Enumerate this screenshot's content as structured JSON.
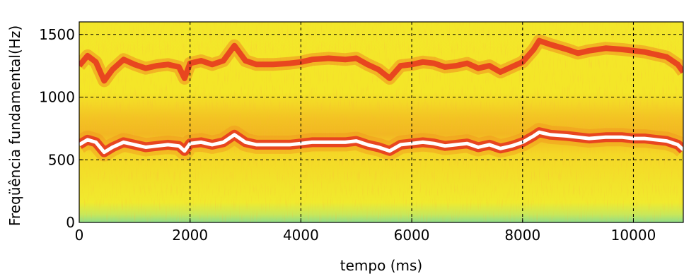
{
  "chart_data": {
    "type": "heatmap",
    "title": "",
    "xlabel": "tempo (ms)",
    "ylabel": "Freqüência fundamental(Hz)",
    "xlim": [
      0,
      10900
    ],
    "ylim": [
      0,
      1600
    ],
    "x_ticks": [
      0,
      2000,
      4000,
      6000,
      8000,
      10000
    ],
    "y_ticks": [
      0,
      500,
      1000,
      1500
    ],
    "x_tick_labels": [
      "0",
      "2000",
      "4000",
      "6000",
      "8000",
      "10000"
    ],
    "y_tick_labels": [
      "0",
      "500",
      "1000",
      "1500"
    ],
    "grid": true,
    "grid_style": "dashed",
    "colors": {
      "background": "#f2ea2a",
      "low_band": "#9ee07a",
      "harmonic": "#e8461f",
      "f0_track": "#ffffff",
      "grid": "#000000"
    },
    "series": [
      {
        "x": [
          0,
          150,
          300,
          450,
          600,
          800,
          1000,
          1200,
          1400,
          1600,
          1800,
          1900,
          2000,
          2200,
          2400,
          2600,
          2800,
          3000,
          3200,
          3500,
          3800,
          4000,
          4200,
          4500,
          4800,
          5000,
          5200,
          5400,
          5600,
          5800,
          6000,
          6200,
          6400,
          6600,
          6800,
          7000,
          7200,
          7400,
          7600,
          7800,
          8000,
          8200,
          8300,
          8500,
          8800,
          9000,
          9200,
          9500,
          9800,
          10000,
          10200,
          10400,
          10600,
          10800,
          10900
        ],
        "values": [
          620,
          660,
          640,
          560,
          600,
          640,
          620,
          600,
          610,
          620,
          610,
          570,
          630,
          640,
          620,
          640,
          700,
          640,
          620,
          620,
          620,
          630,
          640,
          640,
          640,
          650,
          620,
          600,
          570,
          620,
          630,
          640,
          630,
          610,
          620,
          630,
          600,
          620,
          590,
          610,
          640,
          690,
          720,
          700,
          690,
          680,
          670,
          680,
          680,
          670,
          670,
          660,
          650,
          620,
          580
        ]
      },
      {
        "x": [
          0,
          150,
          300,
          450,
          600,
          800,
          1000,
          1200,
          1400,
          1600,
          1800,
          1900,
          2000,
          2200,
          2400,
          2600,
          2800,
          3000,
          3200,
          3500,
          3800,
          4000,
          4200,
          4500,
          4800,
          5000,
          5200,
          5400,
          5600,
          5800,
          6000,
          6200,
          6400,
          6600,
          6800,
          7000,
          7200,
          7400,
          7600,
          7800,
          8000,
          8200,
          8300,
          8500,
          8800,
          9000,
          9200,
          9500,
          9800,
          10000,
          10200,
          10400,
          10600,
          10800,
          10900
        ],
        "values": [
          1250,
          1330,
          1280,
          1130,
          1220,
          1300,
          1260,
          1230,
          1250,
          1260,
          1240,
          1150,
          1270,
          1290,
          1260,
          1290,
          1410,
          1290,
          1260,
          1260,
          1270,
          1280,
          1300,
          1310,
          1300,
          1310,
          1260,
          1220,
          1150,
          1250,
          1260,
          1280,
          1270,
          1240,
          1250,
          1270,
          1230,
          1250,
          1200,
          1240,
          1280,
          1380,
          1450,
          1420,
          1380,
          1350,
          1370,
          1390,
          1380,
          1370,
          1360,
          1340,
          1320,
          1260,
          1200
        ]
      }
    ]
  }
}
